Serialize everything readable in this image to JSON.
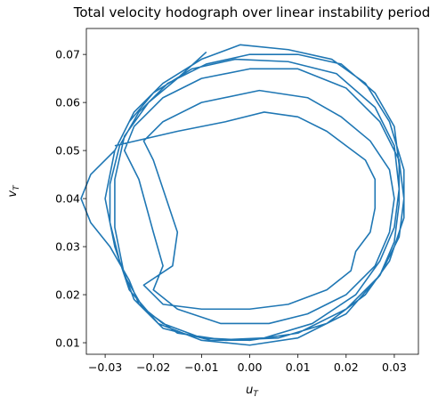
{
  "chart_data": {
    "type": "line",
    "title": "Total velocity hodograph over linear instability period",
    "xlabel": {
      "base": "u",
      "sub": "T"
    },
    "ylabel": {
      "base": "v",
      "sub": "T"
    },
    "xlim": [
      -0.0339,
      0.035
    ],
    "ylim": [
      0.0076,
      0.0754
    ],
    "xticks": [
      {
        "value": -0.03,
        "label": "−0.03"
      },
      {
        "value": -0.02,
        "label": "−0.02"
      },
      {
        "value": -0.01,
        "label": "−0.01"
      },
      {
        "value": 0,
        "label": "0.00"
      },
      {
        "value": 0.01,
        "label": "0.01"
      },
      {
        "value": 0.02,
        "label": "0.02"
      },
      {
        "value": 0.03,
        "label": "0.03"
      }
    ],
    "yticks": [
      0.01,
      0.02,
      0.03,
      0.04,
      0.05,
      0.06,
      0.07
    ],
    "grid": false,
    "series": [
      {
        "color": "#1f77b4",
        "x": [
          -0.028,
          -0.015,
          -0.005,
          0.003,
          0.01,
          0.016,
          0.02,
          0.024,
          0.026,
          0.026,
          0.025,
          0.022,
          0.021,
          0.016,
          0.008,
          0.0,
          -0.01,
          -0.018,
          -0.022,
          -0.016,
          -0.015,
          -0.018,
          -0.02,
          -0.022,
          -0.018,
          -0.01,
          0.002,
          0.012,
          0.019,
          0.025,
          0.029,
          0.03,
          0.029,
          0.026,
          0.02,
          0.012,
          0.004,
          -0.006,
          -0.015,
          -0.02,
          -0.018,
          -0.02,
          -0.023,
          -0.026,
          -0.024,
          -0.018,
          -0.01,
          0,
          0.01,
          0.02,
          0.027,
          0.031,
          0.032,
          0.031,
          0.027,
          0.02,
          0.01,
          0,
          -0.01,
          -0.018,
          -0.023,
          -0.025,
          -0.029,
          -0.033,
          -0.035,
          -0.033,
          -0.028,
          -0.025,
          -0.02,
          -0.012,
          -0.003,
          0.008,
          0.018,
          0.026,
          0.03,
          0.031,
          0.03,
          0.027,
          0.022,
          0.013,
          0.003,
          -0.008,
          -0.018,
          -0.024,
          -0.027,
          -0.029,
          -0.029,
          -0.027,
          -0.023,
          -0.017,
          -0.009,
          0,
          0.01,
          0.019,
          0.026,
          0.03,
          0.031,
          0.031,
          0.03,
          0.027,
          0.02,
          0.01,
          0,
          -0.01,
          -0.019,
          -0.025,
          -0.028,
          -0.03,
          -0.028,
          -0.024,
          -0.018,
          -0.01,
          -0.002,
          0.008,
          0.017,
          0.024,
          0.029,
          0.032,
          0.032,
          0.029,
          0.024,
          0.016,
          0.006,
          -0.005,
          -0.015,
          -0.022,
          -0.026,
          -0.028,
          -0.028,
          -0.026,
          -0.021,
          -0.015,
          -0.009
        ],
        "y": [
          0.051,
          0.054,
          0.056,
          0.058,
          0.057,
          0.054,
          0.051,
          0.048,
          0.044,
          0.038,
          0.033,
          0.029,
          0.025,
          0.021,
          0.018,
          0.017,
          0.017,
          0.018,
          0.022,
          0.026,
          0.033,
          0.042,
          0.048,
          0.052,
          0.056,
          0.06,
          0.0625,
          0.061,
          0.057,
          0.052,
          0.046,
          0.04,
          0.033,
          0.026,
          0.02,
          0.016,
          0.014,
          0.014,
          0.017,
          0.021,
          0.026,
          0.033,
          0.044,
          0.05,
          0.055,
          0.061,
          0.065,
          0.067,
          0.067,
          0.063,
          0.056,
          0.048,
          0.04,
          0.032,
          0.024,
          0.017,
          0.012,
          0.0105,
          0.011,
          0.014,
          0.018,
          0.023,
          0.03,
          0.035,
          0.04,
          0.045,
          0.05,
          0.056,
          0.062,
          0.067,
          0.069,
          0.0685,
          0.066,
          0.059,
          0.051,
          0.042,
          0.034,
          0.027,
          0.02,
          0.014,
          0.011,
          0.0105,
          0.013,
          0.019,
          0.027,
          0.035,
          0.043,
          0.051,
          0.058,
          0.064,
          0.068,
          0.07,
          0.07,
          0.068,
          0.062,
          0.055,
          0.047,
          0.039,
          0.031,
          0.024,
          0.016,
          0.011,
          0.0095,
          0.0105,
          0.014,
          0.021,
          0.03,
          0.04,
          0.05,
          0.058,
          0.064,
          0.069,
          0.072,
          0.071,
          0.069,
          0.064,
          0.056,
          0.046,
          0.036,
          0.027,
          0.02,
          0.014,
          0.011,
          0.0105,
          0.012,
          0.017,
          0.024,
          0.034,
          0.044,
          0.053,
          0.06,
          0.065,
          0.0705
        ]
      }
    ]
  }
}
